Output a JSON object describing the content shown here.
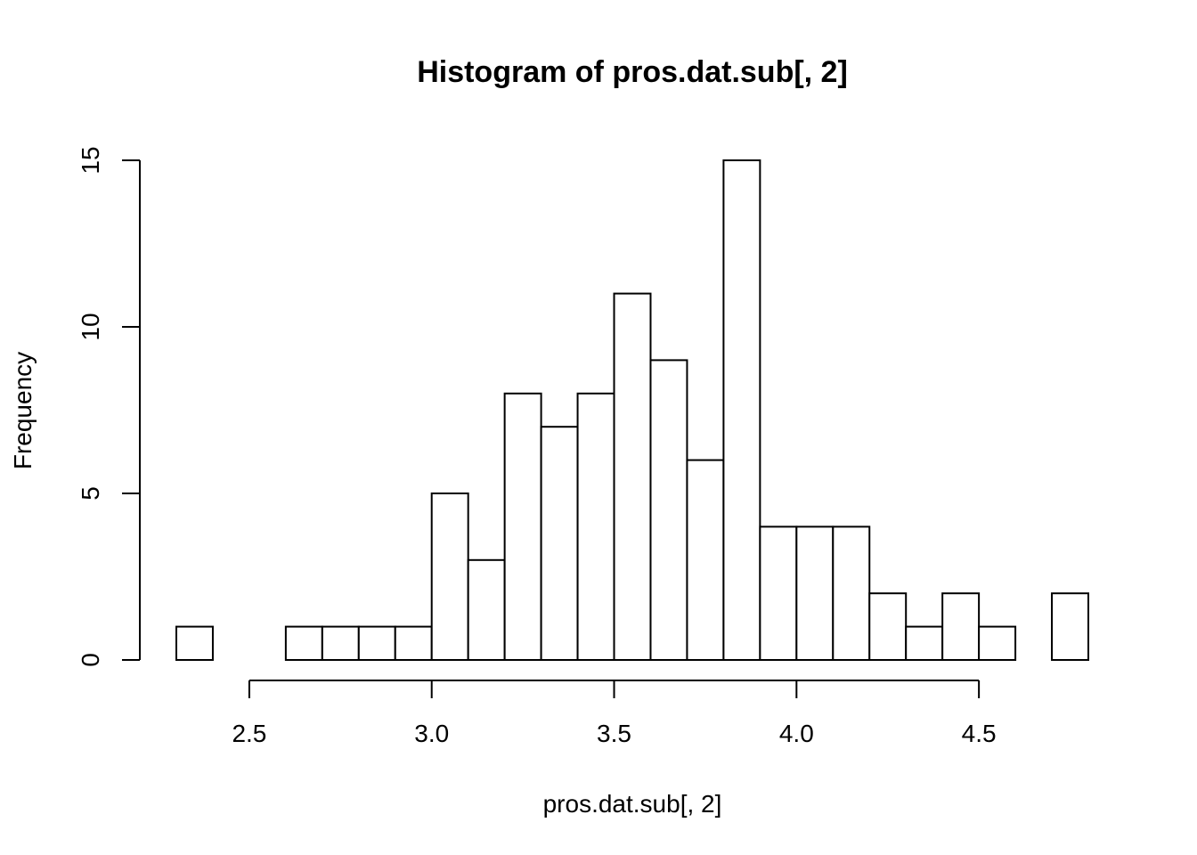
{
  "chart_data": {
    "type": "bar",
    "title": "Histogram of pros.dat.sub[, 2]",
    "xlabel": "pros.dat.sub[, 2]",
    "ylabel": "Frequency",
    "bin_width": 0.1,
    "bins": [
      {
        "start": 2.3,
        "end": 2.4,
        "count": 1
      },
      {
        "start": 2.4,
        "end": 2.5,
        "count": 0
      },
      {
        "start": 2.5,
        "end": 2.6,
        "count": 0
      },
      {
        "start": 2.6,
        "end": 2.7,
        "count": 1
      },
      {
        "start": 2.7,
        "end": 2.8,
        "count": 1
      },
      {
        "start": 2.8,
        "end": 2.9,
        "count": 1
      },
      {
        "start": 2.9,
        "end": 3.0,
        "count": 1
      },
      {
        "start": 3.0,
        "end": 3.1,
        "count": 5
      },
      {
        "start": 3.1,
        "end": 3.2,
        "count": 3
      },
      {
        "start": 3.2,
        "end": 3.3,
        "count": 8
      },
      {
        "start": 3.3,
        "end": 3.4,
        "count": 7
      },
      {
        "start": 3.4,
        "end": 3.5,
        "count": 8
      },
      {
        "start": 3.5,
        "end": 3.6,
        "count": 11
      },
      {
        "start": 3.6,
        "end": 3.7,
        "count": 9
      },
      {
        "start": 3.7,
        "end": 3.8,
        "count": 6
      },
      {
        "start": 3.8,
        "end": 3.9,
        "count": 15
      },
      {
        "start": 3.9,
        "end": 4.0,
        "count": 4
      },
      {
        "start": 4.0,
        "end": 4.1,
        "count": 4
      },
      {
        "start": 4.1,
        "end": 4.2,
        "count": 4
      },
      {
        "start": 4.2,
        "end": 4.3,
        "count": 2
      },
      {
        "start": 4.3,
        "end": 4.4,
        "count": 1
      },
      {
        "start": 4.4,
        "end": 4.5,
        "count": 2
      },
      {
        "start": 4.5,
        "end": 4.6,
        "count": 1
      },
      {
        "start": 4.6,
        "end": 4.7,
        "count": 0
      },
      {
        "start": 4.7,
        "end": 4.8,
        "count": 2
      }
    ],
    "xlim": [
      2.3,
      4.8
    ],
    "ylim": [
      0,
      15
    ],
    "x_ticks": [
      {
        "value": 2.5,
        "label": "2.5"
      },
      {
        "value": 3.0,
        "label": "3.0"
      },
      {
        "value": 3.5,
        "label": "3.5"
      },
      {
        "value": 4.0,
        "label": "4.0"
      },
      {
        "value": 4.5,
        "label": "4.5"
      }
    ],
    "y_ticks": [
      {
        "value": 0,
        "label": "0"
      },
      {
        "value": 5,
        "label": "5"
      },
      {
        "value": 10,
        "label": "10"
      },
      {
        "value": 15,
        "label": "15"
      }
    ],
    "grid": false,
    "bar_fill": "#ffffff",
    "bar_stroke": "#000000"
  }
}
